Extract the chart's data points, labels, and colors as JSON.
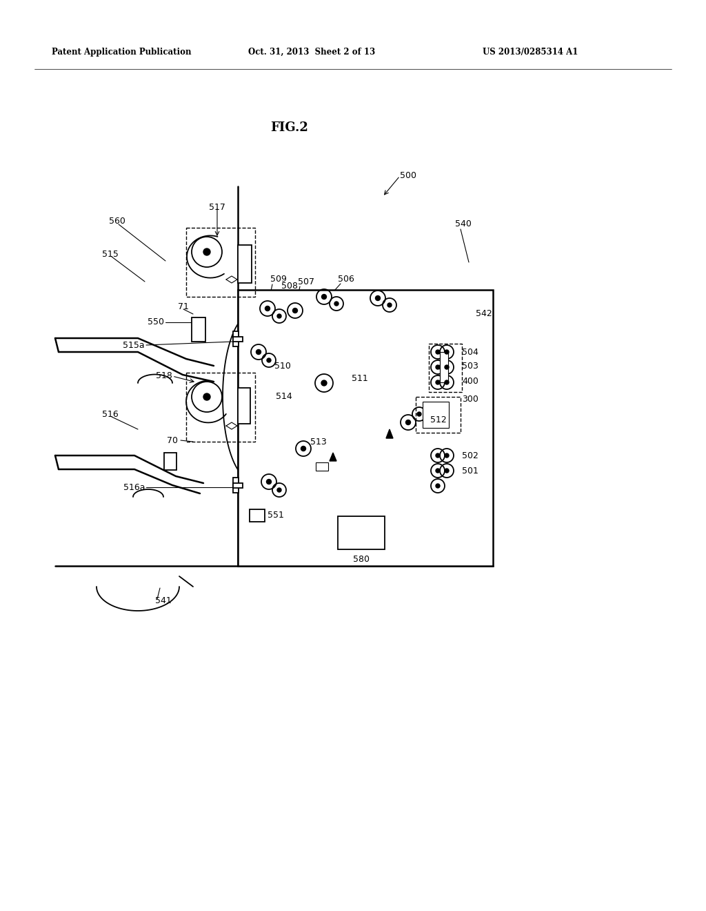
{
  "bg_color": "#ffffff",
  "title_text": "FIG.2",
  "header_left": "Patent Application Publication",
  "header_mid": "Oct. 31, 2013  Sheet 2 of 13",
  "header_right": "US 2013/0285314 A1"
}
